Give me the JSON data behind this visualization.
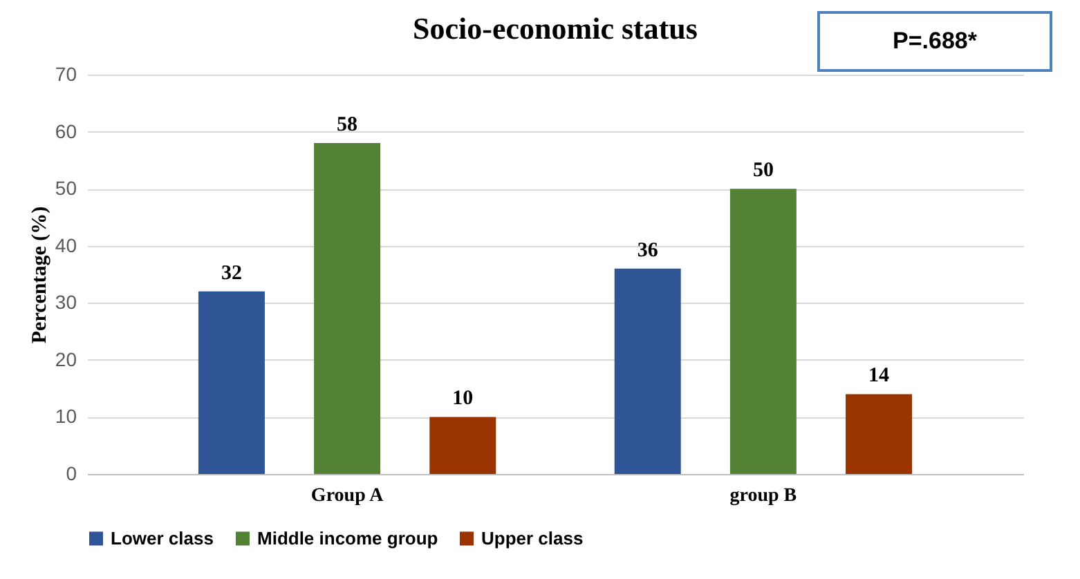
{
  "chart_data": {
    "type": "bar",
    "title": "Socio-economic status",
    "ylabel": "Percentage (%)",
    "categories": [
      "Group A",
      "group B"
    ],
    "series": [
      {
        "name": "Lower class",
        "color": "#2f5597",
        "values": [
          32,
          36
        ]
      },
      {
        "name": "Middle income group",
        "color": "#548235",
        "values": [
          58,
          50
        ]
      },
      {
        "name": "Upper class",
        "color": "#993300",
        "values": [
          10,
          14
        ]
      }
    ],
    "ylim": [
      0,
      70
    ],
    "yticks": [
      0,
      10,
      20,
      30,
      40,
      50,
      60,
      70
    ],
    "grid": "y",
    "legend": "bottom",
    "data_labels": true,
    "annotations": [
      "P=.688*"
    ]
  }
}
